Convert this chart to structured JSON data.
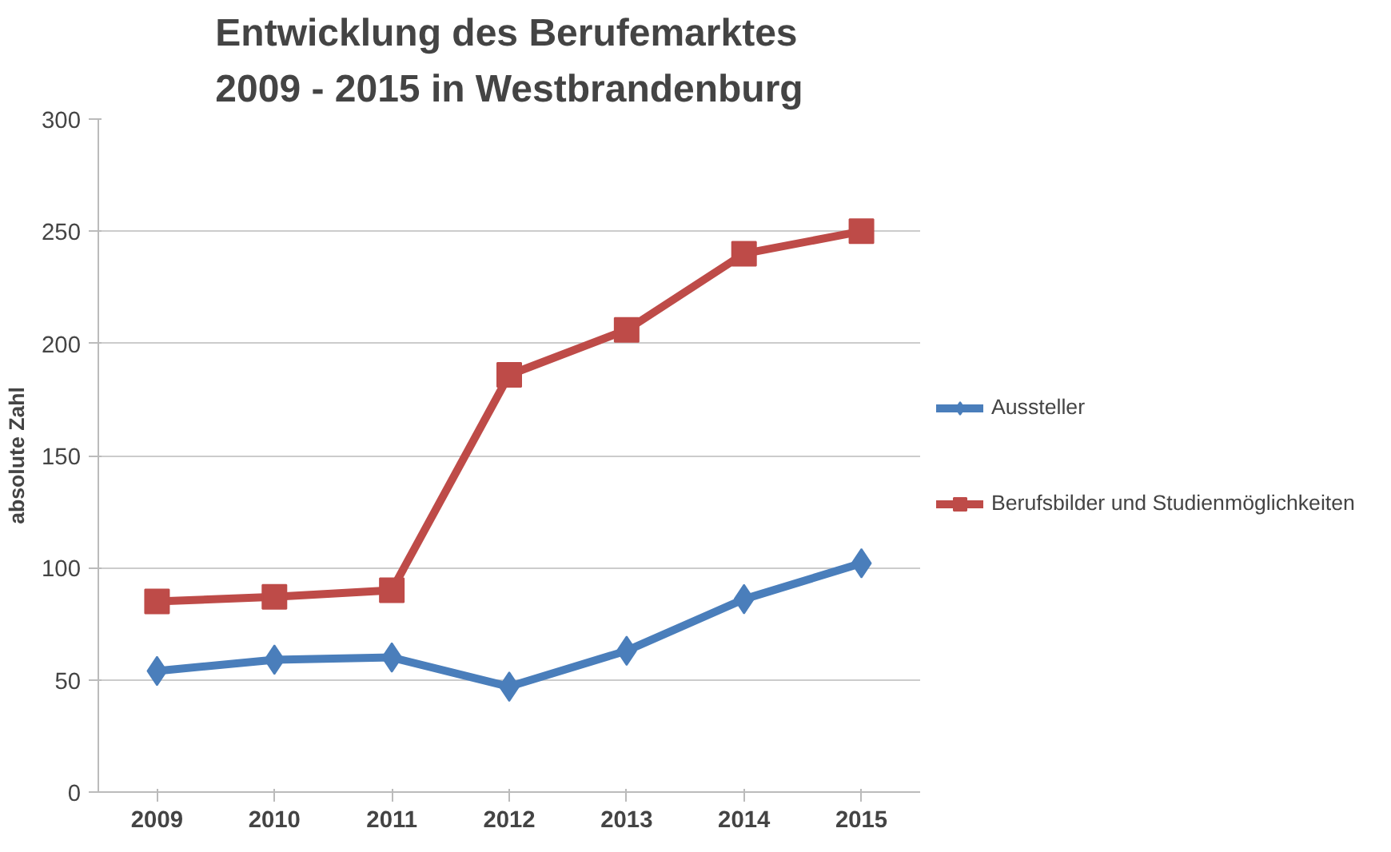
{
  "chart_data": {
    "type": "line",
    "title": "Entwicklung des Berufemarktes\n2009 - 2015 in Westbrandenburg",
    "ylabel": "absolute Zahl",
    "categories": [
      "2009",
      "2010",
      "2011",
      "2012",
      "2013",
      "2014",
      "2015"
    ],
    "series": [
      {
        "name": "Aussteller",
        "color": "#4a7ebb",
        "marker": "diamond",
        "values": [
          54,
          59,
          60,
          47,
          63,
          86,
          102
        ]
      },
      {
        "name": "Berufsbilder und Studienmöglichkeiten",
        "color": "#be4b48",
        "marker": "square",
        "values": [
          85,
          87,
          90,
          186,
          206,
          240,
          250
        ]
      }
    ],
    "ylim": [
      0,
      300
    ],
    "yticks": [
      0,
      50,
      100,
      150,
      200,
      250,
      300
    ],
    "grid": "y",
    "legend": "right"
  }
}
